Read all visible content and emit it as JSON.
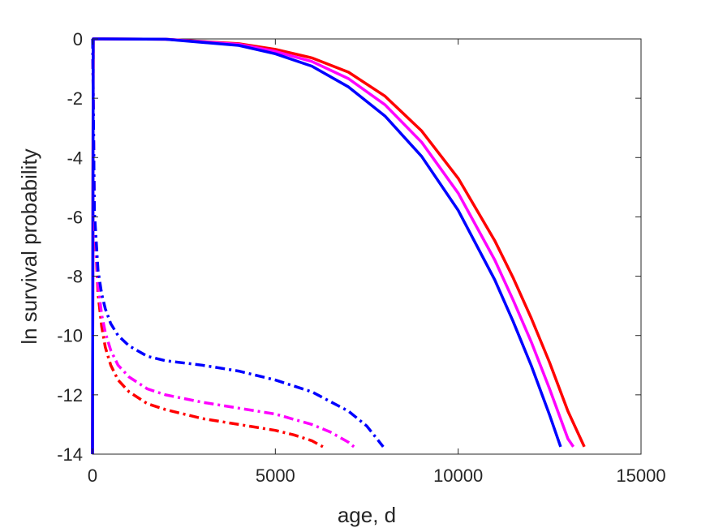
{
  "chart_data": {
    "type": "line",
    "title": "",
    "xlabel": "age, d",
    "ylabel": "ln survival probability",
    "xlim": [
      0,
      15000
    ],
    "ylim": [
      -14,
      0
    ],
    "xticks": [
      0,
      5000,
      10000,
      15000
    ],
    "xtick_labels": [
      "0",
      "5000",
      "10000",
      "15000"
    ],
    "yticks": [
      0,
      -2,
      -4,
      -6,
      -8,
      -10,
      -12,
      -14
    ],
    "ytick_labels": [
      "0",
      "-2",
      "-4",
      "-6",
      "-8",
      "-10",
      "-12",
      "-14"
    ],
    "grid": false,
    "legend": "none",
    "series": [
      {
        "color": "#ff0000",
        "style": "solid",
        "x": [
          0,
          20,
          2000,
          4000,
          5000,
          6000,
          7000,
          8000,
          9000,
          10000,
          11000,
          11500,
          12000,
          12500,
          13000,
          13450
        ],
        "y": [
          -14,
          0,
          -0.01,
          -0.16,
          -0.35,
          -0.64,
          -1.12,
          -1.93,
          -3.1,
          -4.7,
          -6.8,
          -8.05,
          -9.42,
          -10.91,
          -12.55,
          -13.75
        ]
      },
      {
        "color": "#ff00ff",
        "style": "solid",
        "x": [
          0,
          20,
          2000,
          4000,
          5000,
          6000,
          7000,
          8000,
          9000,
          10000,
          11000,
          11500,
          12000,
          12500,
          13000,
          13150
        ],
        "y": [
          -14,
          0,
          -0.01,
          -0.18,
          -0.42,
          -0.76,
          -1.34,
          -2.22,
          -3.48,
          -5.2,
          -7.45,
          -8.8,
          -10.22,
          -11.8,
          -13.48,
          -13.75
        ]
      },
      {
        "color": "#0000ff",
        "style": "solid",
        "x": [
          0,
          20,
          2000,
          4000,
          5000,
          6000,
          7000,
          8000,
          9000,
          10000,
          11000,
          11500,
          12000,
          12500,
          12800
        ],
        "y": [
          -14,
          0,
          -0.01,
          -0.22,
          -0.5,
          -0.92,
          -1.62,
          -2.6,
          -3.96,
          -5.78,
          -8.12,
          -9.52,
          -11.02,
          -12.68,
          -13.75
        ]
      },
      {
        "color": "#ff0000",
        "style": "dashdot",
        "x": [
          5,
          50,
          150,
          250,
          350,
          500,
          700,
          1000,
          1500,
          2000,
          3000,
          4000,
          5000,
          5500,
          6000,
          6300
        ],
        "y": [
          0,
          -6.0,
          -8.6,
          -9.7,
          -10.4,
          -11.0,
          -11.5,
          -11.9,
          -12.3,
          -12.5,
          -12.8,
          -13.0,
          -13.2,
          -13.35,
          -13.55,
          -13.75
        ]
      },
      {
        "color": "#ff00ff",
        "style": "dashdot",
        "x": [
          5,
          50,
          150,
          250,
          350,
          500,
          700,
          1000,
          1500,
          2000,
          3000,
          4000,
          5000,
          6000,
          6500,
          7000,
          7150
        ],
        "y": [
          0,
          -6.0,
          -8.3,
          -9.3,
          -9.9,
          -10.5,
          -11.0,
          -11.4,
          -11.8,
          -12.0,
          -12.25,
          -12.45,
          -12.65,
          -13.0,
          -13.25,
          -13.6,
          -13.75
        ]
      },
      {
        "color": "#0000ff",
        "style": "dashdot",
        "x": [
          5,
          50,
          150,
          250,
          350,
          500,
          700,
          1000,
          1500,
          2000,
          3000,
          4000,
          5000,
          6000,
          7000,
          7500,
          7950
        ],
        "y": [
          0,
          -5.8,
          -7.8,
          -8.6,
          -9.1,
          -9.6,
          -10.0,
          -10.35,
          -10.7,
          -10.85,
          -11.0,
          -11.2,
          -11.5,
          -11.9,
          -12.55,
          -13.05,
          -13.75
        ]
      }
    ]
  }
}
